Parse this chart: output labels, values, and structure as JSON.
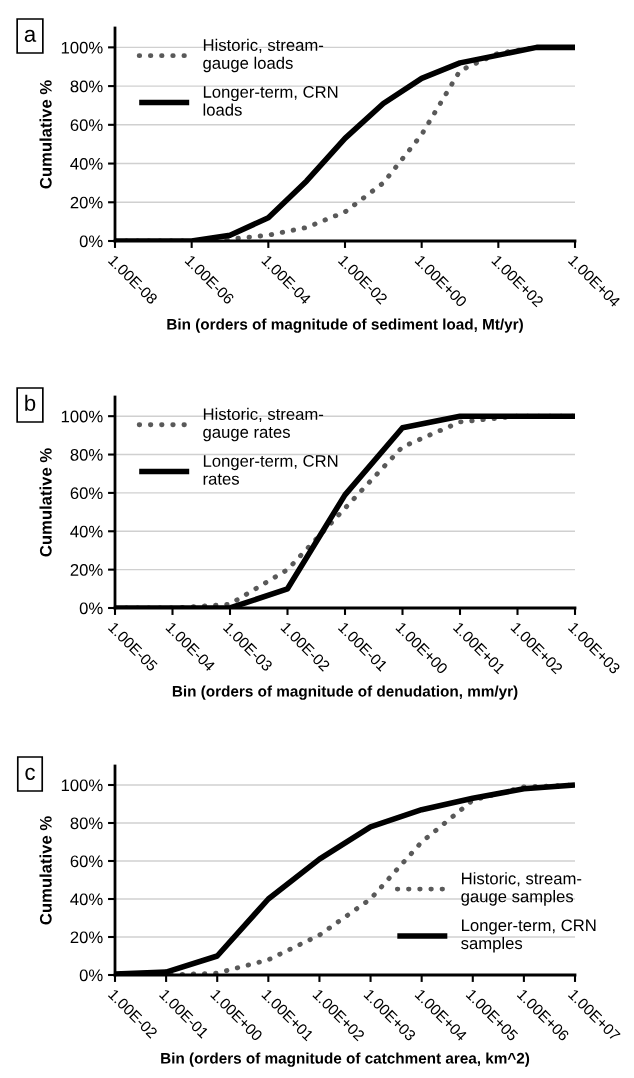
{
  "chart_data": [
    {
      "type": "line",
      "xlabel": "Bin (orders of magnitude of sediment load, Mt/yr)",
      "ylabel": "Cumulative %",
      "annotations": [
        "a"
      ],
      "categories": [
        "1.00E-08",
        null,
        "1.00E-06",
        null,
        "1.00E-04",
        null,
        "1.00E-02",
        null,
        "1.00E+00",
        null,
        "1.00E+02",
        null,
        "1.00E+04"
      ],
      "series": [
        {
          "name": "Historic, stream-\ngauge loads",
          "color": "#595959",
          "line_style": "dotted",
          "values": [
            0,
            0,
            0,
            1,
            3,
            7,
            15,
            30,
            55,
            88,
            97,
            100,
            100
          ]
        },
        {
          "name": "Longer-term, CRN\nloads",
          "color": "#000000",
          "line_style": "solid",
          "values": [
            0,
            0,
            0,
            3,
            12,
            31,
            53,
            71,
            84,
            92,
            96,
            100,
            100
          ]
        }
      ],
      "ylim": [
        0,
        110
      ],
      "yticks": [
        {
          "value": 0,
          "label": "0%"
        },
        {
          "value": 20,
          "label": "20%"
        },
        {
          "value": 40,
          "label": "40%"
        },
        {
          "value": 60,
          "label": "60%"
        },
        {
          "value": 80,
          "label": "80%"
        },
        {
          "value": 100,
          "label": "100%"
        }
      ],
      "grid": "y",
      "legend": "top left",
      "marker": "none"
    },
    {
      "type": "line",
      "xlabel": "Bin (orders of magnitude of denudation, mm/yr)",
      "ylabel": "Cumulative %",
      "annotations": [
        "b"
      ],
      "categories": [
        "1.00E-05",
        "1.00E-04",
        "1.00E-03",
        "1.00E-02",
        "1.00E-01",
        "1.00E+00",
        "1.00E+01",
        "1.00E+02",
        "1.00E+03"
      ],
      "series": [
        {
          "name": "Historic, stream-\ngauge rates",
          "color": "#595959",
          "line_style": "dotted",
          "values": [
            0,
            0,
            2,
            20,
            52,
            84,
            97,
            100,
            100
          ]
        },
        {
          "name": "Longer-term, CRN\nrates",
          "color": "#000000",
          "line_style": "solid",
          "values": [
            0,
            0,
            0,
            10,
            59,
            94,
            100,
            100,
            100
          ]
        }
      ],
      "ylim": [
        0,
        110
      ],
      "yticks": [
        {
          "value": 0,
          "label": "0%"
        },
        {
          "value": 20,
          "label": "20%"
        },
        {
          "value": 40,
          "label": "40%"
        },
        {
          "value": 60,
          "label": "60%"
        },
        {
          "value": 80,
          "label": "80%"
        },
        {
          "value": 100,
          "label": "100%"
        }
      ],
      "grid": "y",
      "legend": "top left",
      "marker": "none"
    },
    {
      "type": "line",
      "xlabel": "Bin (orders of magnitude of catchment area, km^2)",
      "ylabel": "Cumulative %",
      "annotations": [
        "c"
      ],
      "categories": [
        "1.00E-02",
        "1.00E-01",
        "1.00E+00",
        "1.00E+01",
        "1.00E+02",
        "1.00E+03",
        "1.00E+04",
        "1.00E+05",
        "1.00E+06",
        "1.00E+07"
      ],
      "series": [
        {
          "name": "Historic, stream-\ngauge samples",
          "color": "#595959",
          "line_style": "dotted",
          "values": [
            0,
            0,
            1,
            8,
            21,
            40,
            70,
            92,
            99,
            100
          ]
        },
        {
          "name": "Longer-term, CRN\nsamples",
          "color": "#000000",
          "line_style": "solid",
          "values": [
            0.5,
            1.5,
            10,
            40,
            61,
            78,
            87,
            93,
            98,
            100
          ]
        }
      ],
      "ylim": [
        0,
        110
      ],
      "yticks": [
        {
          "value": 0,
          "label": "0%"
        },
        {
          "value": 20,
          "label": "20%"
        },
        {
          "value": 40,
          "label": "40%"
        },
        {
          "value": 60,
          "label": "60%"
        },
        {
          "value": 80,
          "label": "80%"
        },
        {
          "value": 100,
          "label": "100%"
        }
      ],
      "grid": "y",
      "legend": "right",
      "marker": "none"
    }
  ]
}
